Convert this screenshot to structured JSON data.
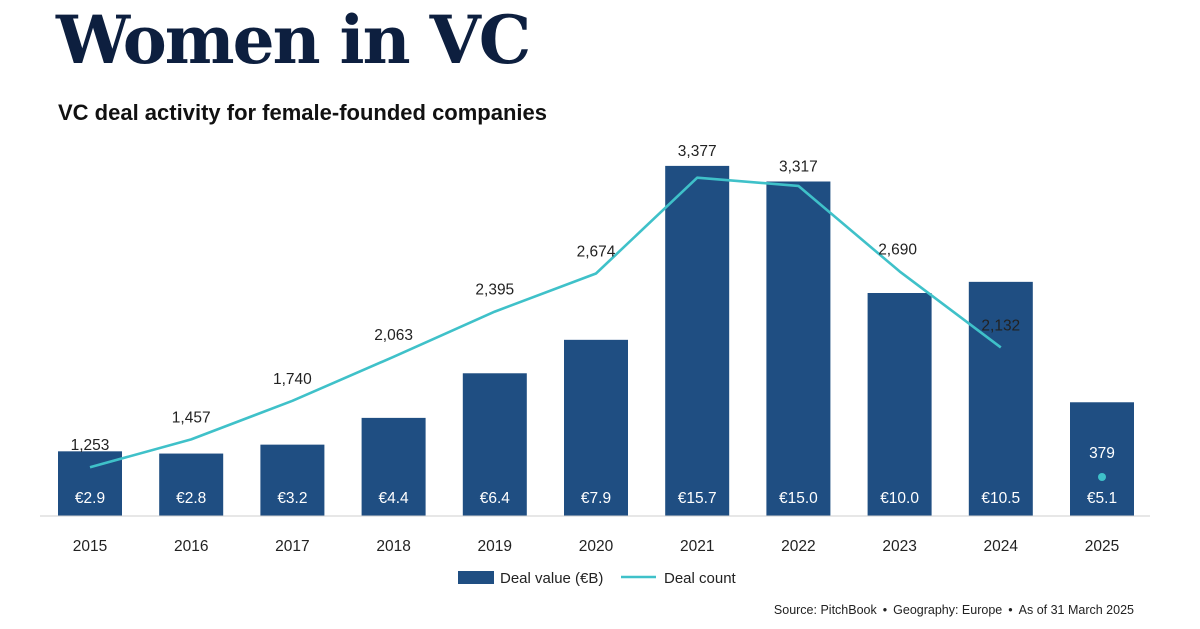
{
  "header": {
    "title": "Women in VC",
    "subtitle": "VC deal activity for female-founded companies"
  },
  "chart_data": {
    "type": "bar",
    "title": "VC deal activity for female-founded companies",
    "categories": [
      "2015",
      "2016",
      "2017",
      "2018",
      "2019",
      "2020",
      "2021",
      "2022",
      "2023",
      "2024",
      "2025"
    ],
    "series": [
      {
        "name": "Deal value (€B)",
        "type": "bar",
        "values": [
          2.9,
          2.8,
          3.2,
          4.4,
          6.4,
          7.9,
          15.7,
          15.0,
          10.0,
          10.5,
          5.1
        ],
        "labels": [
          "€2.9",
          "€2.8",
          "€3.2",
          "€4.4",
          "€6.4",
          "€7.9",
          "€15.7",
          "€15.0",
          "€10.0",
          "€10.5",
          "€5.1"
        ],
        "color": "#1f4e82"
      },
      {
        "name": "Deal count",
        "type": "line",
        "values": [
          1253,
          1457,
          1740,
          2063,
          2395,
          2674,
          3377,
          3317,
          2690,
          2132,
          379
        ],
        "labels": [
          "1,253",
          "1,457",
          "1,740",
          "2,063",
          "2,395",
          "2,674",
          "3,377",
          "3,317",
          "2,690",
          "2,132",
          "379"
        ],
        "color": "#3fc1c9"
      }
    ],
    "legend": {
      "position": "bottom-center",
      "entries": [
        "Deal value (€B)",
        "Deal count"
      ]
    },
    "xlabel": "",
    "ylabel": ""
  },
  "footer": {
    "source": "Source: PitchBook",
    "geography": "Geography: Europe",
    "as_of": "As of 31 March 2025",
    "separator": "•"
  }
}
